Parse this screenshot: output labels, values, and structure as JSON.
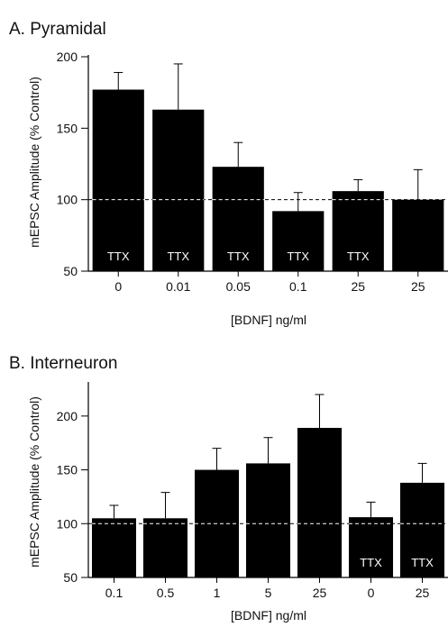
{
  "chart_data": [
    {
      "type": "bar",
      "title": "A. Pyramidal",
      "xlabel": "[BDNF] ng/ml",
      "ylabel": "mEPSC Amplitude (% Control)",
      "categories": [
        "0",
        "0.01",
        "0.05",
        "0.1",
        "25",
        "25"
      ],
      "values": [
        177,
        163,
        123,
        92,
        106,
        100
      ],
      "errors": [
        12,
        32,
        17,
        13,
        8,
        21
      ],
      "bar_labels": [
        "TTX",
        "TTX",
        "TTX",
        "TTX",
        "TTX",
        ""
      ],
      "ylim": [
        50,
        200
      ],
      "yticks": [
        50,
        100,
        150,
        200
      ],
      "reference_line": 100,
      "bar_color": "#000000"
    },
    {
      "type": "bar",
      "title": "B. Interneuron",
      "xlabel": "[BDNF] ng/ml",
      "ylabel": "mEPSC Amplitude (% Control)",
      "categories": [
        "0.1",
        "0.5",
        "1",
        "5",
        "25",
        "0",
        "25"
      ],
      "values": [
        105,
        105,
        150,
        156,
        189,
        106,
        138
      ],
      "errors": [
        12,
        24,
        20,
        24,
        31,
        14,
        18
      ],
      "bar_labels": [
        "",
        "",
        "",
        "",
        "",
        "TTX",
        "TTX"
      ],
      "ylim": [
        50,
        230
      ],
      "yticks": [
        50,
        100,
        150,
        200
      ],
      "reference_line": 100,
      "bar_color": "#000000"
    }
  ]
}
